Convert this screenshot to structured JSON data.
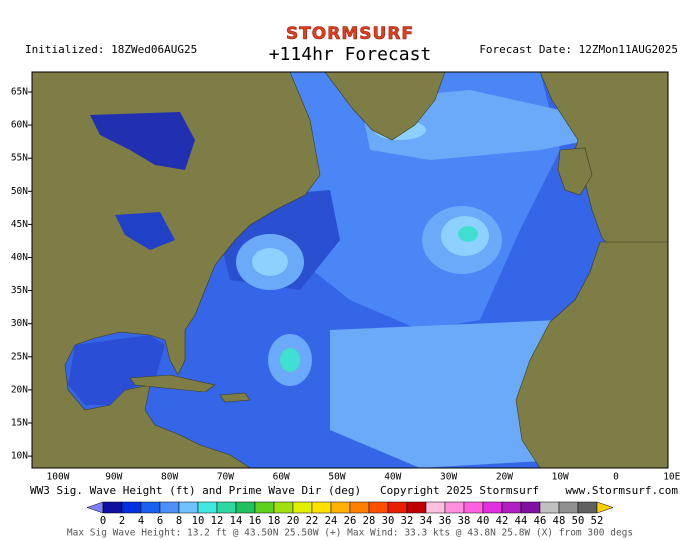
{
  "header": {
    "brand": "STORMSURF",
    "title": "+114hr Forecast",
    "initialized": "Initialized: 18ZWed06AUG25",
    "forecast_date": "Forecast Date: 12ZMon11AUG2025"
  },
  "map": {
    "lat_labels": [
      "65N",
      "60N",
      "55N",
      "50N",
      "45N",
      "40N",
      "35N",
      "30N",
      "25N",
      "20N",
      "15N",
      "10N"
    ],
    "lon_labels": [
      "100W",
      "90W",
      "80W",
      "70W",
      "60W",
      "50W",
      "40W",
      "30W",
      "20W",
      "10W",
      "0",
      "10E"
    ]
  },
  "footer": {
    "caption": "WW3 Sig. Wave Height (ft) and Prime Wave Dir (deg)",
    "copyright": "Copyright 2025 Stormsurf",
    "website": "www.Stormsurf.com",
    "max_info": "Max Sig Wave Height: 13.2 ft @ 43.50N 25.50W (+)  Max Wind: 33.3 kts @ 43.8N 25.8W (X) from 300 degs"
  },
  "colorbar": {
    "ticks": [
      0,
      2,
      4,
      6,
      8,
      10,
      12,
      14,
      16,
      18,
      20,
      22,
      24,
      26,
      28,
      30,
      32,
      34,
      36,
      38,
      40,
      42,
      44,
      46,
      48,
      50,
      52
    ],
    "colors": [
      "#1010a0",
      "#0030e0",
      "#1a60f0",
      "#4a90f8",
      "#70c0ff",
      "#40e8e0",
      "#30d8a0",
      "#20c060",
      "#60d020",
      "#a0e010",
      "#e0f000",
      "#ffe000",
      "#ffb000",
      "#ff8000",
      "#ff5000",
      "#e82000",
      "#c00000",
      "#ffc0e0",
      "#ff90e0",
      "#ff60e0",
      "#e030e0",
      "#b020c0",
      "#8010a0",
      "#c0c0c0",
      "#909090",
      "#606060"
    ],
    "low_color": "#8080ff",
    "high_color": "#ffd000"
  }
}
